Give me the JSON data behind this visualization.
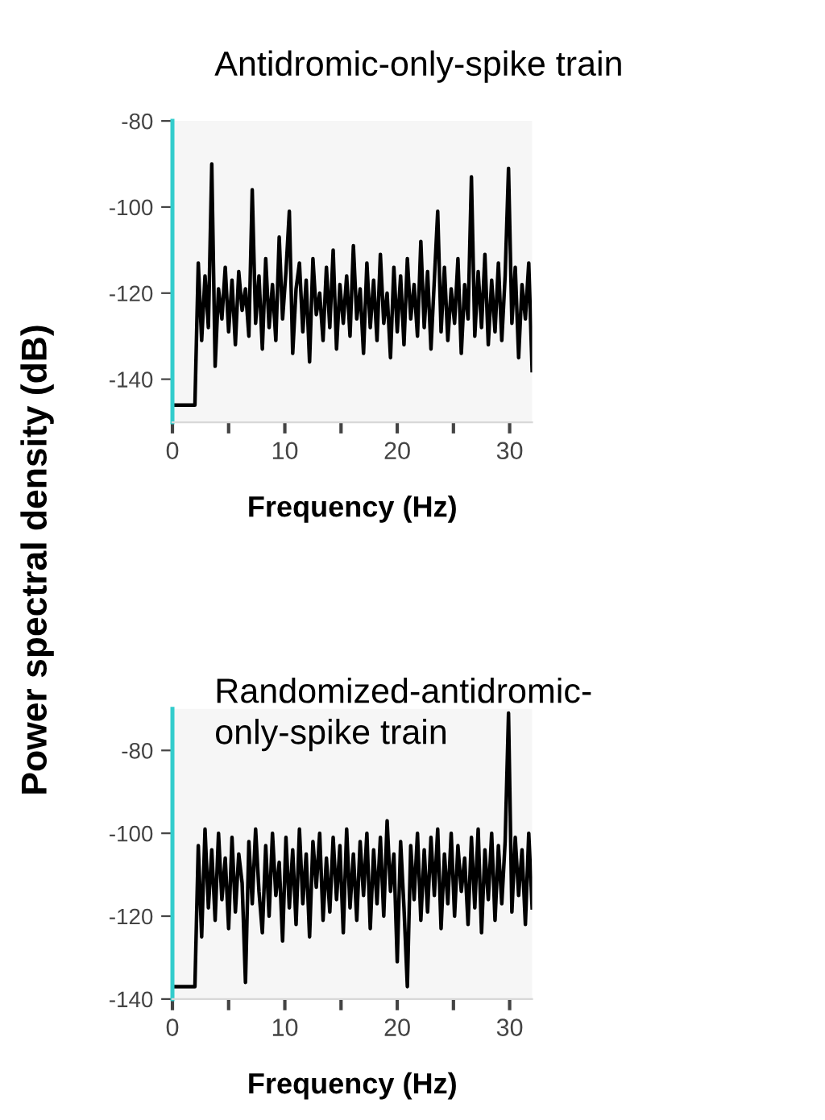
{
  "chart_data": [
    {
      "type": "line",
      "title": "Antidromic-only-spike train",
      "xlabel": "Frequency (Hz)",
      "ylabel": "Power spectral density (dB)",
      "xlim": [
        0,
        32
      ],
      "xticks": [
        0,
        {
          "value": 5,
          "label": null
        },
        10,
        {
          "value": 15,
          "label": null
        },
        20,
        {
          "value": 25,
          "label": null
        },
        30
      ],
      "ylim": [
        -150,
        -80
      ],
      "yticks": [
        -80,
        -100,
        -120,
        -140
      ],
      "grid": false,
      "legend": false,
      "series": [
        {
          "color": "#000000",
          "x": [
            0,
            2,
            2.3,
            2.6,
            2.9,
            3.2,
            3.5,
            3.8,
            4.1,
            4.4,
            4.7,
            5.0,
            5.3,
            5.6,
            5.9,
            6.2,
            6.5,
            6.8,
            7.1,
            7.4,
            7.7,
            8.0,
            8.3,
            8.6,
            8.9,
            9.2,
            9.5,
            9.8,
            10.1,
            10.4,
            10.7,
            11.0,
            11.3,
            11.6,
            11.9,
            12.2,
            12.5,
            12.8,
            13.1,
            13.4,
            13.7,
            14.0,
            14.3,
            14.6,
            14.9,
            15.2,
            15.5,
            15.8,
            16.1,
            16.4,
            16.7,
            17.0,
            17.3,
            17.6,
            17.9,
            18.2,
            18.5,
            18.8,
            19.1,
            19.4,
            19.7,
            20.0,
            20.3,
            20.6,
            20.9,
            21.2,
            21.5,
            21.8,
            22.1,
            22.4,
            22.7,
            23.0,
            23.3,
            23.6,
            23.9,
            24.2,
            24.5,
            24.8,
            25.1,
            25.4,
            25.7,
            26.0,
            26.3,
            26.6,
            26.9,
            27.2,
            27.5,
            27.8,
            28.1,
            28.4,
            28.7,
            29.0,
            29.3,
            29.6,
            29.9,
            30.2,
            30.5,
            30.8,
            31.1,
            31.4,
            31.7,
            32.0
          ],
          "values": [
            -146,
            -146,
            -113,
            -131,
            -116,
            -128,
            -90,
            -137,
            -119,
            -126,
            -114,
            -129,
            -117,
            -132,
            -115,
            -124,
            -119,
            -130,
            -96,
            -127,
            -116,
            -133,
            -112,
            -128,
            -118,
            -131,
            -107,
            -126,
            -115,
            -101,
            -134,
            -119,
            -113,
            -129,
            -117,
            -136,
            -112,
            -125,
            -120,
            -131,
            -114,
            -128,
            -110,
            -133,
            -118,
            -127,
            -116,
            -130,
            -109,
            -126,
            -119,
            -134,
            -113,
            -128,
            -117,
            -131,
            -111,
            -127,
            -120,
            -135,
            -114,
            -129,
            -116,
            -132,
            -112,
            -126,
            -118,
            -130,
            -108,
            -128,
            -115,
            -133,
            -117,
            -101,
            -129,
            -114,
            -131,
            -119,
            -127,
            -112,
            -134,
            -118,
            -126,
            -93,
            -130,
            -115,
            -128,
            -111,
            -132,
            -117,
            -129,
            -113,
            -131,
            -116,
            -91,
            -127,
            -114,
            -135,
            -118,
            -126,
            -113,
            -138
          ]
        }
      ]
    },
    {
      "type": "line",
      "title": "Randomized-antidromic-\nonly-spike train",
      "xlabel": "Frequency (Hz)",
      "xlim": [
        0,
        32
      ],
      "xticks": [
        0,
        {
          "value": 5,
          "label": null
        },
        10,
        {
          "value": 15,
          "label": null
        },
        20,
        {
          "value": 25,
          "label": null
        },
        30
      ],
      "ylim": [
        -140,
        -70
      ],
      "yticks": [
        -80,
        -100,
        -120,
        -140
      ],
      "grid": false,
      "legend": false,
      "series": [
        {
          "color": "#000000",
          "x": [
            0,
            2,
            2.3,
            2.6,
            2.9,
            3.2,
            3.5,
            3.8,
            4.1,
            4.4,
            4.7,
            5.0,
            5.3,
            5.6,
            5.9,
            6.2,
            6.5,
            6.8,
            7.1,
            7.4,
            7.7,
            8.0,
            8.3,
            8.6,
            8.9,
            9.2,
            9.5,
            9.8,
            10.1,
            10.4,
            10.7,
            11.0,
            11.3,
            11.6,
            11.9,
            12.2,
            12.5,
            12.8,
            13.1,
            13.4,
            13.7,
            14.0,
            14.3,
            14.6,
            14.9,
            15.2,
            15.5,
            15.8,
            16.1,
            16.4,
            16.7,
            17.0,
            17.3,
            17.6,
            17.9,
            18.2,
            18.5,
            18.8,
            19.1,
            19.4,
            19.7,
            20.0,
            20.3,
            20.6,
            20.9,
            21.2,
            21.5,
            21.8,
            22.1,
            22.4,
            22.7,
            23.0,
            23.3,
            23.6,
            23.9,
            24.2,
            24.5,
            24.8,
            25.1,
            25.4,
            25.7,
            26.0,
            26.3,
            26.6,
            26.9,
            27.2,
            27.5,
            27.8,
            28.1,
            28.4,
            28.7,
            29.0,
            29.3,
            29.6,
            29.9,
            30.2,
            30.5,
            30.8,
            31.1,
            31.4,
            31.7,
            32.0
          ],
          "values": [
            -137,
            -137,
            -103,
            -125,
            -99,
            -118,
            -104,
            -121,
            -100,
            -116,
            -106,
            -123,
            -101,
            -119,
            -105,
            -112,
            -136,
            -102,
            -117,
            -99,
            -114,
            -124,
            -103,
            -120,
            -100,
            -115,
            -107,
            -126,
            -101,
            -118,
            -104,
            -122,
            -99,
            -117,
            -105,
            -125,
            -102,
            -113,
            -100,
            -121,
            -106,
            -119,
            -101,
            -116,
            -103,
            -124,
            -99,
            -118,
            -105,
            -121,
            -102,
            -115,
            -100,
            -123,
            -104,
            -117,
            -101,
            -120,
            -97,
            -114,
            -105,
            -131,
            -102,
            -118,
            -137,
            -103,
            -116,
            -100,
            -121,
            -104,
            -119,
            -101,
            -115,
            -99,
            -123,
            -105,
            -117,
            -100,
            -120,
            -103,
            -114,
            -106,
            -122,
            -101,
            -118,
            -99,
            -124,
            -104,
            -116,
            -100,
            -121,
            -103,
            -117,
            -102,
            -71,
            -119,
            -101,
            -115,
            -104,
            -122,
            -100,
            -118
          ]
        }
      ]
    }
  ]
}
